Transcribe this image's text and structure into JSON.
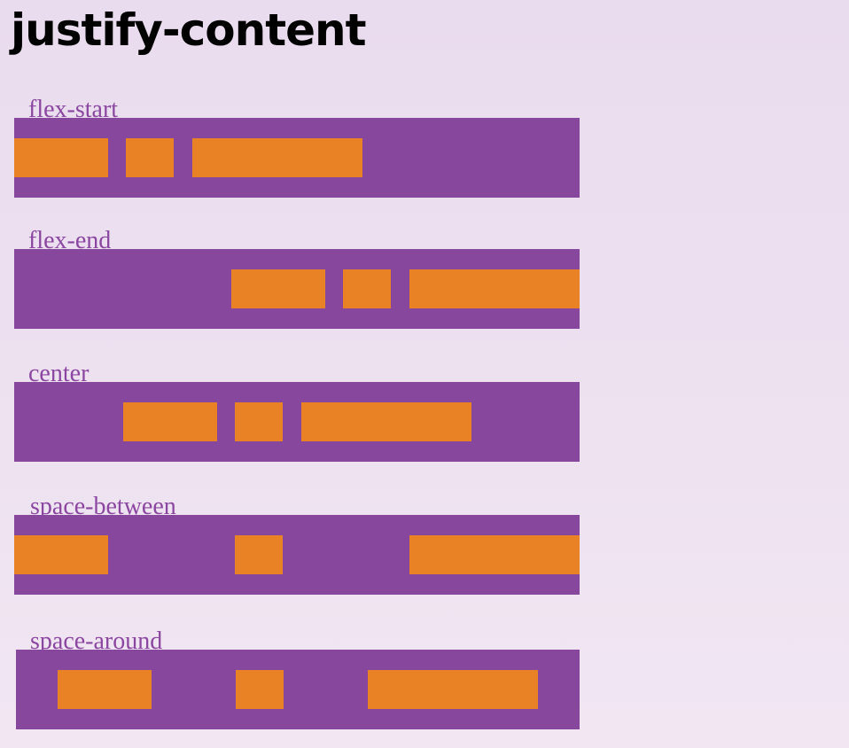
{
  "page": {
    "title": "justify-content"
  },
  "demos": [
    {
      "label": "flex-start"
    },
    {
      "label": "flex-end"
    },
    {
      "label": "center"
    },
    {
      "label": "space-between"
    },
    {
      "label": "space-around"
    }
  ],
  "colors": {
    "background": "#ebdfee",
    "container": "#86479c",
    "item": "#e88224",
    "label": "#8a46a0",
    "title": "#000000"
  }
}
